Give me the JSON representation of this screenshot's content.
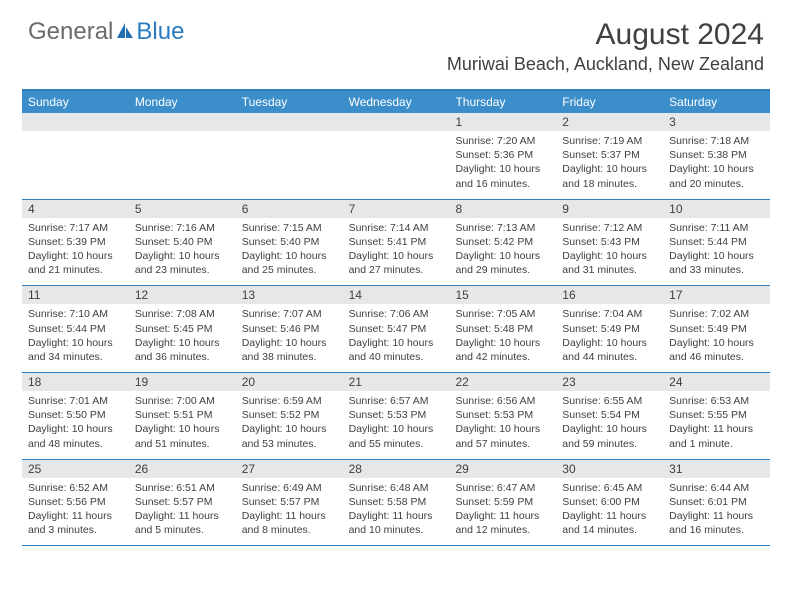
{
  "branding": {
    "general": "General",
    "blue": "Blue",
    "logo_color_general": "#6b6b6b",
    "logo_color_blue": "#2a7bbf"
  },
  "header": {
    "month_title": "August 2024",
    "location": "Muriwai Beach, Auckland, New Zealand",
    "title_fontsize": 30,
    "location_fontsize": 18,
    "text_color": "#404040"
  },
  "calendar": {
    "header_bg": "#3c8ecb",
    "header_text": "#ffffff",
    "border_color": "#2f7fbf",
    "daynum_bg": "#e6e7e9",
    "cell_text_color": "#404040",
    "detail_fontsize": 10.5,
    "days_of_week": [
      "Sunday",
      "Monday",
      "Tuesday",
      "Wednesday",
      "Thursday",
      "Friday",
      "Saturday"
    ],
    "weeks": [
      [
        {
          "n": "",
          "sunrise": "",
          "sunset": "",
          "daylight": ""
        },
        {
          "n": "",
          "sunrise": "",
          "sunset": "",
          "daylight": ""
        },
        {
          "n": "",
          "sunrise": "",
          "sunset": "",
          "daylight": ""
        },
        {
          "n": "",
          "sunrise": "",
          "sunset": "",
          "daylight": ""
        },
        {
          "n": "1",
          "sunrise": "Sunrise: 7:20 AM",
          "sunset": "Sunset: 5:36 PM",
          "daylight": "Daylight: 10 hours and 16 minutes."
        },
        {
          "n": "2",
          "sunrise": "Sunrise: 7:19 AM",
          "sunset": "Sunset: 5:37 PM",
          "daylight": "Daylight: 10 hours and 18 minutes."
        },
        {
          "n": "3",
          "sunrise": "Sunrise: 7:18 AM",
          "sunset": "Sunset: 5:38 PM",
          "daylight": "Daylight: 10 hours and 20 minutes."
        }
      ],
      [
        {
          "n": "4",
          "sunrise": "Sunrise: 7:17 AM",
          "sunset": "Sunset: 5:39 PM",
          "daylight": "Daylight: 10 hours and 21 minutes."
        },
        {
          "n": "5",
          "sunrise": "Sunrise: 7:16 AM",
          "sunset": "Sunset: 5:40 PM",
          "daylight": "Daylight: 10 hours and 23 minutes."
        },
        {
          "n": "6",
          "sunrise": "Sunrise: 7:15 AM",
          "sunset": "Sunset: 5:40 PM",
          "daylight": "Daylight: 10 hours and 25 minutes."
        },
        {
          "n": "7",
          "sunrise": "Sunrise: 7:14 AM",
          "sunset": "Sunset: 5:41 PM",
          "daylight": "Daylight: 10 hours and 27 minutes."
        },
        {
          "n": "8",
          "sunrise": "Sunrise: 7:13 AM",
          "sunset": "Sunset: 5:42 PM",
          "daylight": "Daylight: 10 hours and 29 minutes."
        },
        {
          "n": "9",
          "sunrise": "Sunrise: 7:12 AM",
          "sunset": "Sunset: 5:43 PM",
          "daylight": "Daylight: 10 hours and 31 minutes."
        },
        {
          "n": "10",
          "sunrise": "Sunrise: 7:11 AM",
          "sunset": "Sunset: 5:44 PM",
          "daylight": "Daylight: 10 hours and 33 minutes."
        }
      ],
      [
        {
          "n": "11",
          "sunrise": "Sunrise: 7:10 AM",
          "sunset": "Sunset: 5:44 PM",
          "daylight": "Daylight: 10 hours and 34 minutes."
        },
        {
          "n": "12",
          "sunrise": "Sunrise: 7:08 AM",
          "sunset": "Sunset: 5:45 PM",
          "daylight": "Daylight: 10 hours and 36 minutes."
        },
        {
          "n": "13",
          "sunrise": "Sunrise: 7:07 AM",
          "sunset": "Sunset: 5:46 PM",
          "daylight": "Daylight: 10 hours and 38 minutes."
        },
        {
          "n": "14",
          "sunrise": "Sunrise: 7:06 AM",
          "sunset": "Sunset: 5:47 PM",
          "daylight": "Daylight: 10 hours and 40 minutes."
        },
        {
          "n": "15",
          "sunrise": "Sunrise: 7:05 AM",
          "sunset": "Sunset: 5:48 PM",
          "daylight": "Daylight: 10 hours and 42 minutes."
        },
        {
          "n": "16",
          "sunrise": "Sunrise: 7:04 AM",
          "sunset": "Sunset: 5:49 PM",
          "daylight": "Daylight: 10 hours and 44 minutes."
        },
        {
          "n": "17",
          "sunrise": "Sunrise: 7:02 AM",
          "sunset": "Sunset: 5:49 PM",
          "daylight": "Daylight: 10 hours and 46 minutes."
        }
      ],
      [
        {
          "n": "18",
          "sunrise": "Sunrise: 7:01 AM",
          "sunset": "Sunset: 5:50 PM",
          "daylight": "Daylight: 10 hours and 48 minutes."
        },
        {
          "n": "19",
          "sunrise": "Sunrise: 7:00 AM",
          "sunset": "Sunset: 5:51 PM",
          "daylight": "Daylight: 10 hours and 51 minutes."
        },
        {
          "n": "20",
          "sunrise": "Sunrise: 6:59 AM",
          "sunset": "Sunset: 5:52 PM",
          "daylight": "Daylight: 10 hours and 53 minutes."
        },
        {
          "n": "21",
          "sunrise": "Sunrise: 6:57 AM",
          "sunset": "Sunset: 5:53 PM",
          "daylight": "Daylight: 10 hours and 55 minutes."
        },
        {
          "n": "22",
          "sunrise": "Sunrise: 6:56 AM",
          "sunset": "Sunset: 5:53 PM",
          "daylight": "Daylight: 10 hours and 57 minutes."
        },
        {
          "n": "23",
          "sunrise": "Sunrise: 6:55 AM",
          "sunset": "Sunset: 5:54 PM",
          "daylight": "Daylight: 10 hours and 59 minutes."
        },
        {
          "n": "24",
          "sunrise": "Sunrise: 6:53 AM",
          "sunset": "Sunset: 5:55 PM",
          "daylight": "Daylight: 11 hours and 1 minute."
        }
      ],
      [
        {
          "n": "25",
          "sunrise": "Sunrise: 6:52 AM",
          "sunset": "Sunset: 5:56 PM",
          "daylight": "Daylight: 11 hours and 3 minutes."
        },
        {
          "n": "26",
          "sunrise": "Sunrise: 6:51 AM",
          "sunset": "Sunset: 5:57 PM",
          "daylight": "Daylight: 11 hours and 5 minutes."
        },
        {
          "n": "27",
          "sunrise": "Sunrise: 6:49 AM",
          "sunset": "Sunset: 5:57 PM",
          "daylight": "Daylight: 11 hours and 8 minutes."
        },
        {
          "n": "28",
          "sunrise": "Sunrise: 6:48 AM",
          "sunset": "Sunset: 5:58 PM",
          "daylight": "Daylight: 11 hours and 10 minutes."
        },
        {
          "n": "29",
          "sunrise": "Sunrise: 6:47 AM",
          "sunset": "Sunset: 5:59 PM",
          "daylight": "Daylight: 11 hours and 12 minutes."
        },
        {
          "n": "30",
          "sunrise": "Sunrise: 6:45 AM",
          "sunset": "Sunset: 6:00 PM",
          "daylight": "Daylight: 11 hours and 14 minutes."
        },
        {
          "n": "31",
          "sunrise": "Sunrise: 6:44 AM",
          "sunset": "Sunset: 6:01 PM",
          "daylight": "Daylight: 11 hours and 16 minutes."
        }
      ]
    ]
  }
}
